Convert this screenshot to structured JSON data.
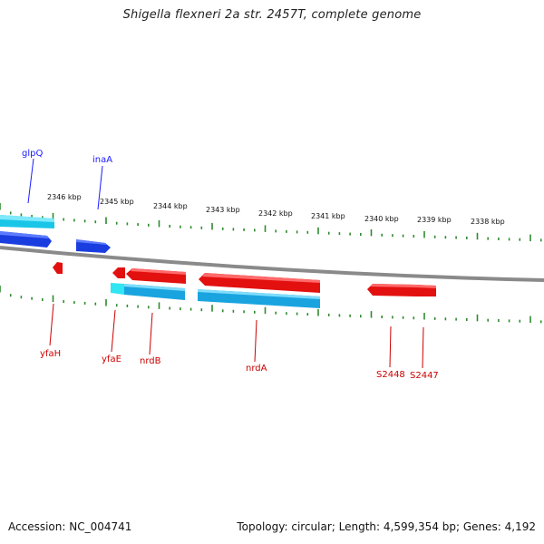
{
  "title": "Shigella flexneri 2a str. 2457T, complete genome",
  "footer": {
    "accession": "Accession: NC_004741",
    "summary": "Topology: circular; Length: 4,599,354 bp; Genes: 4,192"
  },
  "colors": {
    "backbone": "#8a8a8a",
    "ticks": "#2e8b2e",
    "gene_forward": "#e31010",
    "gene_cds": "#1a3de0",
    "feature_forward": "#19c6e8",
    "label_blue": "#1a1aff",
    "label_red": "#cc0000"
  },
  "scale_labels": [
    "2346 kbp",
    "2345 kbp",
    "2344 kbp",
    "2343 kbp",
    "2342 kbp",
    "2341 kbp",
    "2340 kbp",
    "2339 kbp",
    "2338 kbp"
  ],
  "gene_labels_top": [
    "glpQ",
    "inaA"
  ],
  "gene_labels_bottom": [
    "yfaH",
    "yfaE",
    "nrdB",
    "nrdA",
    "S2448",
    "S2447"
  ]
}
